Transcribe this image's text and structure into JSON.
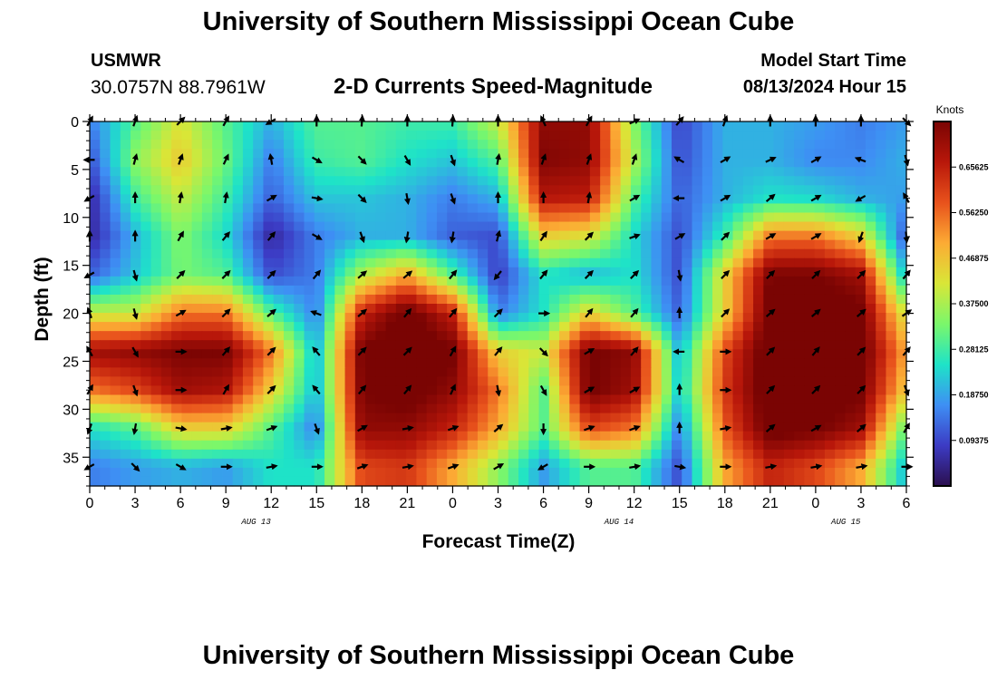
{
  "header": {
    "title": "University of Southern Mississippi Ocean Cube",
    "station": "USMWR",
    "coordinates": "30.0757N  88.7961W",
    "plot_title": "2-D Currents Speed-Magnitude",
    "model_start_label": "Model Start Time",
    "model_start_value": "08/13/2024 Hour 15"
  },
  "footer": {
    "title": "University of Southern Mississippi Ocean Cube"
  },
  "chart_data": {
    "type": "heatmap",
    "title": "2-D Currents Speed-Magnitude",
    "xlabel": "Forecast Time(Z)",
    "ylabel": "Depth (ft)",
    "x_hours": [
      0,
      6,
      12,
      18,
      24,
      30,
      36,
      42,
      48,
      54
    ],
    "x_tick_labels": [
      "0",
      "3",
      "6",
      "9",
      "12",
      "15",
      "18",
      "21",
      "0",
      "3",
      "6",
      "9",
      "12",
      "15",
      "18",
      "21",
      "0",
      "3",
      "6"
    ],
    "date_labels": [
      {
        "label": "AUG 13",
        "hour": 11
      },
      {
        "label": "AUG 14",
        "hour": 35
      },
      {
        "label": "AUG 15",
        "hour": 50
      }
    ],
    "y_ticks": [
      0,
      5,
      10,
      15,
      20,
      25,
      30,
      35
    ],
    "ylim": [
      0,
      38
    ],
    "xlim": [
      0,
      54
    ],
    "colorbar": {
      "label": "Knots",
      "ticks": [
        "0.09375",
        "0.18750",
        "0.28125",
        "0.37500",
        "0.46875",
        "0.56250",
        "0.65625"
      ],
      "range": [
        0,
        0.75
      ],
      "colors": [
        "#2b0f4e",
        "#3c3bc4",
        "#3e8ff4",
        "#1ee3c8",
        "#7af76b",
        "#d9e637",
        "#fcab34",
        "#e8521c",
        "#b8170a",
        "#7a0403"
      ]
    },
    "depths": [
      0,
      4,
      8,
      12,
      16,
      20,
      24,
      28,
      32,
      36
    ],
    "times": [
      0,
      3,
      6,
      9,
      12,
      15,
      18,
      21,
      24,
      27,
      30,
      33,
      36,
      39,
      42,
      45,
      48,
      51,
      54
    ],
    "speed": [
      [
        0.15,
        0.3,
        0.42,
        0.3,
        0.2,
        0.3,
        0.3,
        0.28,
        0.28,
        0.4,
        0.72,
        0.72,
        0.34,
        0.09,
        0.2,
        0.2,
        0.18,
        0.15,
        0.18
      ],
      [
        0.1,
        0.35,
        0.46,
        0.32,
        0.15,
        0.28,
        0.3,
        0.25,
        0.22,
        0.3,
        0.74,
        0.72,
        0.38,
        0.1,
        0.2,
        0.2,
        0.16,
        0.16,
        0.2
      ],
      [
        0.05,
        0.28,
        0.4,
        0.28,
        0.12,
        0.22,
        0.22,
        0.2,
        0.15,
        0.2,
        0.67,
        0.66,
        0.3,
        0.12,
        0.2,
        0.25,
        0.24,
        0.2,
        0.18
      ],
      [
        0.05,
        0.2,
        0.34,
        0.24,
        0.05,
        0.15,
        0.2,
        0.2,
        0.12,
        0.1,
        0.45,
        0.42,
        0.24,
        0.1,
        0.28,
        0.55,
        0.55,
        0.45,
        0.1
      ],
      [
        0.12,
        0.22,
        0.33,
        0.3,
        0.1,
        0.15,
        0.38,
        0.5,
        0.3,
        0.08,
        0.25,
        0.2,
        0.25,
        0.1,
        0.45,
        0.75,
        0.75,
        0.7,
        0.2
      ],
      [
        0.4,
        0.4,
        0.55,
        0.55,
        0.3,
        0.15,
        0.65,
        0.78,
        0.65,
        0.15,
        0.25,
        0.45,
        0.3,
        0.12,
        0.45,
        0.78,
        0.8,
        0.76,
        0.4
      ],
      [
        0.7,
        0.72,
        0.75,
        0.75,
        0.55,
        0.2,
        0.76,
        0.8,
        0.76,
        0.45,
        0.4,
        0.76,
        0.72,
        0.2,
        0.6,
        0.8,
        0.8,
        0.78,
        0.5
      ],
      [
        0.55,
        0.6,
        0.7,
        0.68,
        0.45,
        0.2,
        0.75,
        0.78,
        0.72,
        0.55,
        0.3,
        0.76,
        0.7,
        0.22,
        0.62,
        0.8,
        0.8,
        0.76,
        0.45
      ],
      [
        0.25,
        0.3,
        0.45,
        0.45,
        0.3,
        0.15,
        0.72,
        0.72,
        0.65,
        0.5,
        0.3,
        0.6,
        0.55,
        0.15,
        0.58,
        0.78,
        0.76,
        0.7,
        0.3
      ],
      [
        0.15,
        0.18,
        0.2,
        0.18,
        0.25,
        0.25,
        0.6,
        0.62,
        0.5,
        0.35,
        0.18,
        0.3,
        0.3,
        0.1,
        0.5,
        0.65,
        0.6,
        0.5,
        0.2
      ]
    ],
    "arrows": [
      [
        150,
        160,
        135,
        150,
        300,
        180,
        175,
        180,
        175,
        180,
        205,
        150,
        115,
        140,
        160,
        180,
        180,
        180,
        45
      ],
      [
        270,
        165,
        160,
        155,
        190,
        60,
        45,
        30,
        20,
        170,
        160,
        160,
        160,
        240,
        120,
        115,
        120,
        250,
        15
      ],
      [
        300,
        180,
        170,
        170,
        120,
        80,
        45,
        10,
        20,
        180,
        180,
        170,
        120,
        270,
        120,
        130,
        120,
        300,
        210
      ],
      [
        180,
        180,
        150,
        140,
        140,
        60,
        20,
        350,
        350,
        165,
        145,
        135,
        110,
        120,
        135,
        120,
        120,
        340,
        5
      ],
      [
        300,
        15,
        135,
        135,
        135,
        140,
        130,
        130,
        140,
        320,
        140,
        135,
        135,
        10,
        135,
        135,
        135,
        135,
        140
      ],
      [
        200,
        15,
        120,
        135,
        130,
        250,
        130,
        140,
        140,
        135,
        90,
        140,
        140,
        180,
        135,
        130,
        130,
        130,
        125
      ],
      [
        210,
        30,
        90,
        140,
        135,
        220,
        135,
        135,
        150,
        140,
        45,
        120,
        140,
        270,
        90,
        135,
        140,
        135,
        140
      ],
      [
        150,
        20,
        90,
        150,
        135,
        220,
        140,
        140,
        155,
        10,
        30,
        120,
        120,
        180,
        90,
        135,
        135,
        135,
        20
      ],
      [
        340,
        350,
        80,
        100,
        110,
        20,
        120,
        100,
        110,
        130,
        0,
        110,
        110,
        180,
        100,
        130,
        120,
        130,
        150
      ],
      [
        300,
        45,
        60,
        90,
        100,
        90,
        110,
        100,
        110,
        120,
        300,
        90,
        100,
        80,
        90,
        100,
        100,
        100,
        90
      ]
    ]
  }
}
